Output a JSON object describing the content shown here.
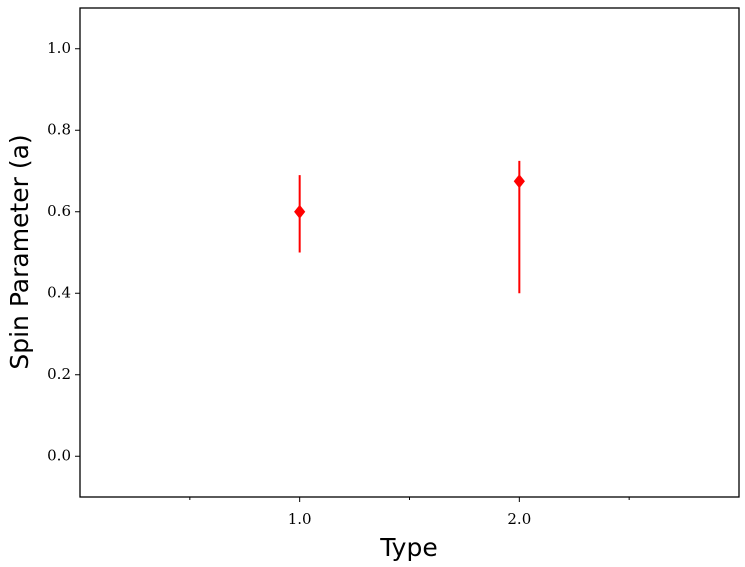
{
  "chart_data": {
    "type": "errorbar",
    "xlabel": "Type",
    "ylabel": "Spin Parameter (a)",
    "series": [
      {
        "color": "#ff0000",
        "marker": "diamond",
        "x": [
          1.0,
          2.0
        ],
        "values": [
          0.6,
          0.675
        ],
        "yerr_lower": [
          0.1,
          0.275
        ],
        "yerr_upper": [
          0.09,
          0.05
        ]
      }
    ],
    "xlim": [
      0,
      3
    ],
    "ylim": [
      -0.1,
      1.1
    ],
    "xticks": [
      {
        "value": 1,
        "label": "1.0"
      },
      {
        "value": 2,
        "label": "2.0"
      }
    ],
    "xminorticks": [
      0.5,
      1.5,
      2.5
    ],
    "yticks": [
      {
        "value": 0,
        "label": "0.0"
      },
      {
        "value": 0.2,
        "label": "0.2"
      },
      {
        "value": 0.4,
        "label": "0.4"
      },
      {
        "value": 0.6,
        "label": "0.6"
      },
      {
        "value": 0.8,
        "label": "0.8"
      },
      {
        "value": 1.0,
        "label": "1.0"
      }
    ],
    "grid": false
  }
}
